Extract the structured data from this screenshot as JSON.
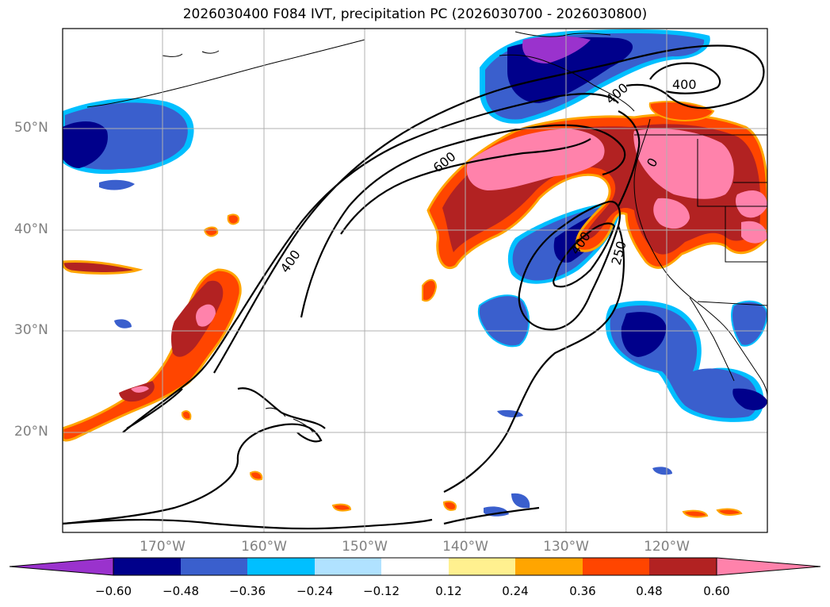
{
  "title": "2026030400 F084 IVT, precipitation PC (2026030700 - 2026030800)",
  "lat_labels": [
    "50°N",
    "40°N",
    "30°N",
    "20°N"
  ],
  "lon_labels": [
    "170°W",
    "160°W",
    "150°W",
    "140°W",
    "130°W",
    "120°W"
  ],
  "colorbar": {
    "ticks": [
      "−0.60",
      "−0.48",
      "−0.36",
      "−0.24",
      "−0.12",
      "0.12",
      "0.24",
      "0.36",
      "0.48",
      "0.60"
    ],
    "colors": [
      "#9a32cd",
      "#00008b",
      "#3a5fcd",
      "#00bfff",
      "#b0e2ff",
      "#ffffff",
      "#fff08f",
      "#ffa500",
      "#ff4500",
      "#b22222",
      "#ff82ab"
    ]
  },
  "contour_labels": [
    "400",
    "600",
    "400",
    "400",
    "400",
    "250",
    "0"
  ]
}
